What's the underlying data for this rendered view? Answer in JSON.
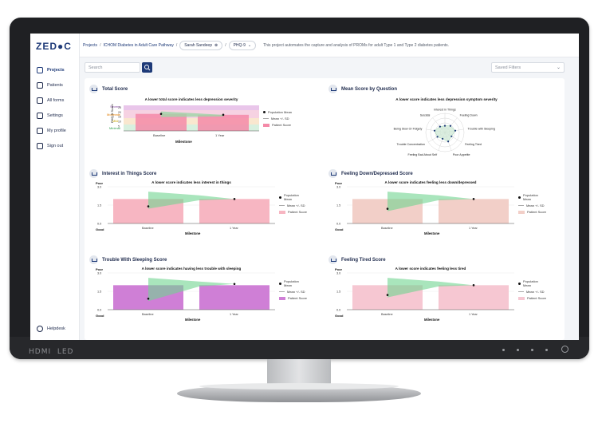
{
  "app": {
    "logo": "ZED●C"
  },
  "sidebar": {
    "items": [
      {
        "label": "Projects",
        "icon": "clipboard-icon",
        "active": true
      },
      {
        "label": "Patients",
        "icon": "user-icon"
      },
      {
        "label": "All forms",
        "icon": "forms-icon"
      },
      {
        "label": "Settings",
        "icon": "sliders-icon"
      },
      {
        "label": "My profile",
        "icon": "profile-icon"
      },
      {
        "label": "Sign out",
        "icon": "sign-out-icon"
      }
    ],
    "help": "Helpdesk"
  },
  "topbar": {
    "crumb1": "Projects",
    "crumb2": "ICHOM Diabetes in Adult Care Pathway",
    "patient": "Sarah Sandeep",
    "form": "PHQ-9",
    "description": "This project automates the capture and analysis of PROMs for adult Type 1 and Type 2 diabetes patients."
  },
  "search": {
    "placeholder": "Search"
  },
  "filters": {
    "placeholder": "Saved Filters"
  },
  "cards": {
    "total": {
      "title": "Total Score",
      "subtitle": "A lower total score indicates less depression severity",
      "ylabel": "PHQ-9 Score",
      "xlabel": "Milestone",
      "bands": [
        "Severe",
        "Moderate",
        "Mild",
        "Minimal"
      ],
      "ticks": [
        "25",
        "20",
        "15",
        "10",
        "5"
      ],
      "categories": [
        "Baseline",
        "1 Year"
      ],
      "legend": [
        "Population Mean",
        "Mean +/- SD",
        "Patient Score"
      ]
    },
    "mean": {
      "title": "Mean Score by Question",
      "subtitle": "A lower score indicates less depression symptom severity",
      "axes": [
        "Interest in Things",
        "Feeling Down",
        "Trouble with Sleeping",
        "Feeling Tired",
        "Poor Appetite",
        "Feeling Bad About Self",
        "Trouble Concentration",
        "Being Slow Or Fidgety",
        "Suicidal"
      ]
    },
    "interest": {
      "title": "Interest in Things Score",
      "subtitle": "A lower score indicates less interest in things"
    },
    "down": {
      "title": "Feeling Down/Depressed Score",
      "subtitle": "A lower score indicates feeling less down/depressed"
    },
    "sleep": {
      "title": "Trouble With Sleeping Score",
      "subtitle": "A lower score indicates having less trouble with sleeping"
    },
    "tired": {
      "title": "Feeling Tired Score",
      "subtitle": "A lower score indicates feeling less tired"
    }
  },
  "small_chart": {
    "poor": "Poor",
    "good": "Good",
    "ticks": [
      "3.0",
      "1.5",
      "0.0"
    ],
    "categories": [
      "Baseline",
      "1 Year"
    ],
    "xlabel": "Milestone",
    "legend": [
      "Population Mean",
      "Mean +/- SD",
      "Patient Score"
    ]
  },
  "chart_data": [
    {
      "type": "bar",
      "title": "A lower total score indicates less depression severity",
      "categories": [
        "Baseline",
        "1 Year"
      ],
      "series": [
        {
          "name": "Patient Score",
          "values": [
            18,
            17
          ]
        },
        {
          "name": "Population Mean",
          "values": [
            18,
            17
          ]
        }
      ],
      "ylim": [
        0,
        27
      ]
    },
    {
      "type": "bar",
      "title": "A lower score indicates less interest in things",
      "categories": [
        "Baseline",
        "1 Year"
      ],
      "series": [
        {
          "name": "Patient Score",
          "values": [
            2,
            2
          ]
        },
        {
          "name": "Population Mean",
          "values": [
            1.4,
            2.0
          ]
        }
      ],
      "ylim": [
        0,
        3
      ]
    },
    {
      "type": "bar",
      "title": "A lower score indicates feeling less down/depressed",
      "categories": [
        "Baseline",
        "1 Year"
      ],
      "series": [
        {
          "name": "Patient Score",
          "values": [
            2,
            2
          ]
        },
        {
          "name": "Population Mean",
          "values": [
            1.2,
            2.0
          ]
        }
      ],
      "ylim": [
        0,
        3
      ]
    },
    {
      "type": "bar",
      "title": "A lower score indicates having less trouble with sleeping",
      "categories": [
        "Baseline",
        "1 Year"
      ],
      "series": [
        {
          "name": "Patient Score",
          "values": [
            2,
            2
          ]
        },
        {
          "name": "Population Mean",
          "values": [
            0.9,
            2.1
          ]
        }
      ],
      "ylim": [
        0,
        3
      ]
    },
    {
      "type": "bar",
      "title": "A lower score indicates feeling less tired",
      "categories": [
        "Baseline",
        "1 Year"
      ],
      "series": [
        {
          "name": "Patient Score",
          "values": [
            2,
            2
          ]
        },
        {
          "name": "Population Mean",
          "values": [
            1.2,
            2.0
          ]
        }
      ],
      "ylim": [
        0,
        3
      ]
    }
  ],
  "colors": {
    "brand": "#1e3a78",
    "pink": "#f7b6c2",
    "purple": "#cf7fd6",
    "lightpink": "#f6c7d2",
    "green": "#7ddc9e"
  }
}
